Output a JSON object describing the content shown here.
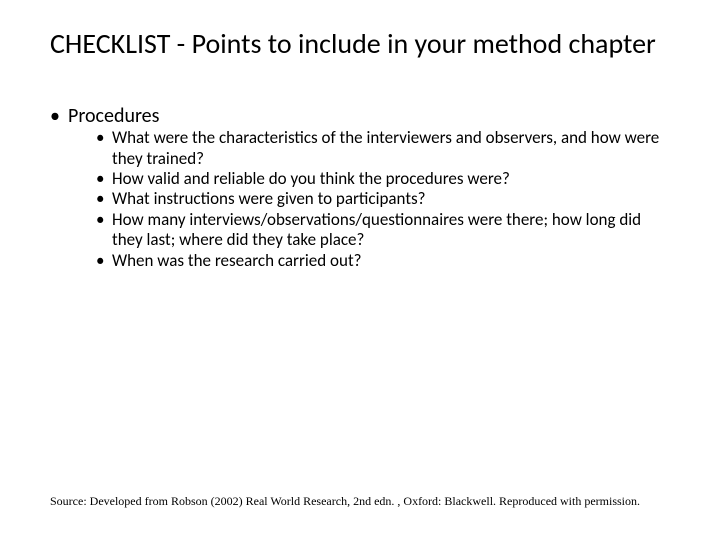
{
  "title": "CHECKLIST - Points to include in your method chapter",
  "level1": {
    "bullet": "•",
    "text": "Procedures"
  },
  "level2": {
    "bullet": "•",
    "items": [
      "What were the characteristics of the interviewers and observers, and how were they trained?",
      "How valid and reliable do you think the procedures were?",
      "What instructions were given to participants?",
      "How many interviews/observations/questionnaires were there; how long did they last; where did they take place?",
      "When was the research carried out?"
    ]
  },
  "source": "Source: Developed from Robson (2002) Real World Research, 2nd edn. , Oxford: Blackwell. Reproduced with permission.",
  "colors": {
    "background": "#ffffff",
    "text": "#000000"
  },
  "fonts": {
    "title_size": 28,
    "level1_size": 20,
    "level2_size": 17,
    "source_size": 12,
    "main_family": "Calibri",
    "source_family": "Times New Roman"
  }
}
